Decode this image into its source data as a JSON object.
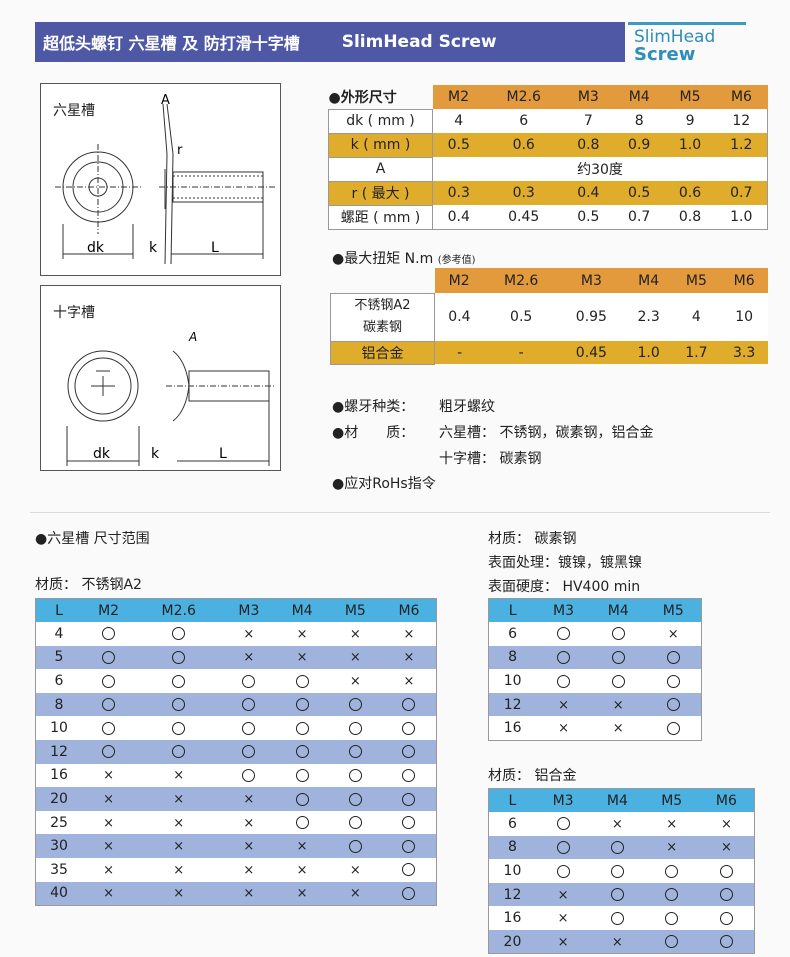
{
  "header": {
    "title_cn": "超低头螺钉  六星槽 及 防打滑十字槽",
    "title_en": "SlimHead Screw",
    "logo_line1": "SlimHead",
    "logo_line2": "Screw"
  },
  "diagrams": [
    {
      "label": "六星槽",
      "dims": [
        "A",
        "r",
        "dk",
        "k",
        "L"
      ]
    },
    {
      "label": "十字槽",
      "dims": [
        "A",
        "dk",
        "k",
        "L"
      ]
    }
  ],
  "dimensions": {
    "title": "●外形尺寸",
    "sizes": [
      "M2",
      "M2.6",
      "M3",
      "M4",
      "M5",
      "M6"
    ],
    "rows": [
      {
        "label": "dk ( mm )",
        "values": [
          "4",
          "6",
          "7",
          "8",
          "9",
          "12"
        ]
      },
      {
        "label": "k ( mm )",
        "values": [
          "0.5",
          "0.6",
          "0.8",
          "0.9",
          "1.0",
          "1.2"
        ]
      },
      {
        "label": "A",
        "merged": "约30度"
      },
      {
        "label": "r ( 最大 )",
        "values": [
          "0.3",
          "0.3",
          "0.4",
          "0.5",
          "0.6",
          "0.7"
        ]
      },
      {
        "label": "螺距 ( mm )",
        "values": [
          "0.4",
          "0.45",
          "0.5",
          "0.7",
          "0.8",
          "1.0"
        ]
      }
    ]
  },
  "torque": {
    "title": "●最大扭矩 N.m",
    "note": "(参考值)",
    "sizes": [
      "M2",
      "M2.6",
      "M3",
      "M4",
      "M5",
      "M6"
    ],
    "rows": [
      {
        "label1": "不锈钢A2",
        "label2": "碳素钢",
        "values": [
          "0.4",
          "0.5",
          "0.95",
          "2.3",
          "4",
          "10"
        ]
      },
      {
        "label1": "铝合金",
        "values": [
          "-",
          "-",
          "0.45",
          "1.0",
          "1.7",
          "3.3"
        ]
      }
    ]
  },
  "specs": [
    {
      "label": "●螺牙种类：",
      "value": "粗牙螺纹"
    },
    {
      "label": "●材　　质：",
      "value": "六星槽： 不锈钢，碳素钢，铝合金"
    },
    {
      "label": "",
      "value": "十字槽： 碳素钢"
    },
    {
      "label": "●应对RoHs指令",
      "value": ""
    }
  ],
  "range_title": "●六星槽 尺寸范围",
  "colors": {
    "header": "#4e58a5",
    "orange": "#e39a3c",
    "yellow": "#e0ac2c",
    "blue_header": "#4bb1e1",
    "blue_stripe": "#9fb3dd"
  },
  "legend_symbols": {
    "O": "available",
    "x": "not available"
  },
  "tables": [
    {
      "material": "材质： 不锈钢A2",
      "cols": [
        "L",
        "M2",
        "M2.6",
        "M3",
        "M4",
        "M5",
        "M6"
      ],
      "rows": [
        [
          "4",
          "O",
          "O",
          "x",
          "x",
          "x",
          "x"
        ],
        [
          "5",
          "O",
          "O",
          "x",
          "x",
          "x",
          "x"
        ],
        [
          "6",
          "O",
          "O",
          "O",
          "O",
          "x",
          "x"
        ],
        [
          "8",
          "O",
          "O",
          "O",
          "O",
          "O",
          "O"
        ],
        [
          "10",
          "O",
          "O",
          "O",
          "O",
          "O",
          "O"
        ],
        [
          "12",
          "O",
          "O",
          "O",
          "O",
          "O",
          "O"
        ],
        [
          "16",
          "x",
          "x",
          "O",
          "O",
          "O",
          "O"
        ],
        [
          "20",
          "x",
          "x",
          "x",
          "O",
          "O",
          "O"
        ],
        [
          "25",
          "x",
          "x",
          "x",
          "O",
          "O",
          "O"
        ],
        [
          "30",
          "x",
          "x",
          "x",
          "x",
          "O",
          "O"
        ],
        [
          "35",
          "x",
          "x",
          "x",
          "x",
          "x",
          "O"
        ],
        [
          "40",
          "x",
          "x",
          "x",
          "x",
          "x",
          "O"
        ]
      ]
    },
    {
      "material": "材质： 碳素钢",
      "extra": [
        "表面处理：镀镍，镀黑镍",
        "表面硬度： HV400 min"
      ],
      "cols": [
        "L",
        "M3",
        "M4",
        "M5"
      ],
      "rows": [
        [
          "6",
          "O",
          "O",
          "x"
        ],
        [
          "8",
          "O",
          "O",
          "O"
        ],
        [
          "10",
          "O",
          "O",
          "O"
        ],
        [
          "12",
          "x",
          "x",
          "O"
        ],
        [
          "16",
          "x",
          "x",
          "O"
        ]
      ]
    },
    {
      "material": "材质： 铝合金",
      "cols": [
        "L",
        "M3",
        "M4",
        "M5",
        "M6"
      ],
      "rows": [
        [
          "6",
          "O",
          "x",
          "x",
          "x"
        ],
        [
          "8",
          "O",
          "O",
          "x",
          "x"
        ],
        [
          "10",
          "O",
          "O",
          "O",
          "O"
        ],
        [
          "12",
          "x",
          "O",
          "O",
          "O"
        ],
        [
          "16",
          "x",
          "O",
          "O",
          "O"
        ],
        [
          "20",
          "x",
          "x",
          "O",
          "O"
        ]
      ]
    }
  ]
}
